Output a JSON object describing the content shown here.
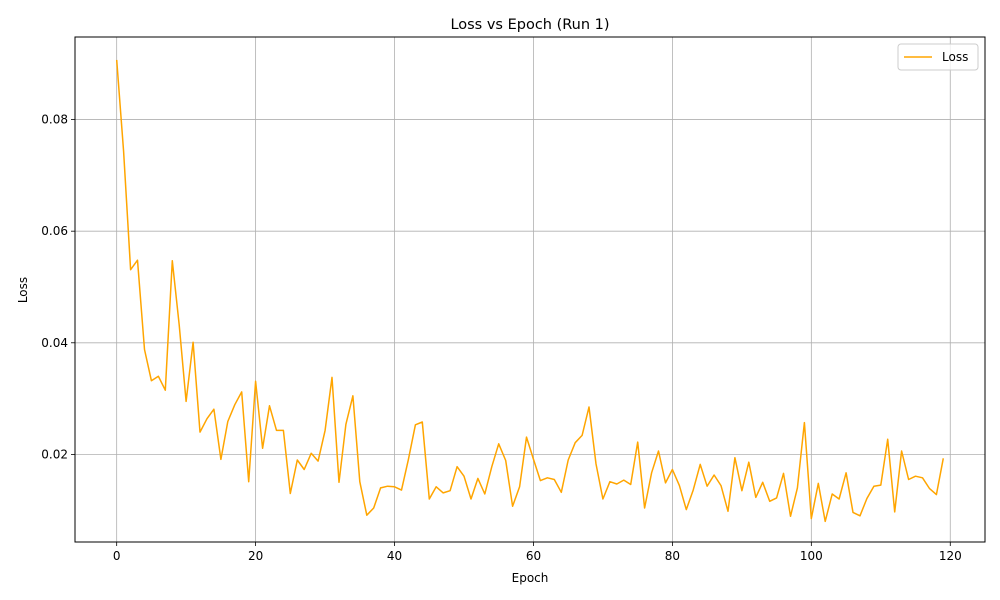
{
  "chart_data": {
    "type": "line",
    "title": "Loss vs Epoch (Run 1)",
    "xlabel": "Epoch",
    "ylabel": "Loss",
    "xlim": [
      -6,
      125
    ],
    "ylim": [
      0.0043,
      0.0948
    ],
    "xticks": [
      0,
      20,
      40,
      60,
      80,
      100,
      120
    ],
    "yticks": [
      0.02,
      0.04,
      0.06,
      0.08
    ],
    "ytick_labels": [
      "0.02",
      "0.04",
      "0.06",
      "0.08"
    ],
    "grid": true,
    "legend_position": "top-right",
    "series": [
      {
        "name": "Loss",
        "color": "#ffa500",
        "x": [
          0,
          1,
          2,
          3,
          4,
          5,
          6,
          7,
          8,
          9,
          10,
          11,
          12,
          13,
          14,
          15,
          16,
          17,
          18,
          19,
          20,
          21,
          22,
          23,
          24,
          25,
          26,
          27,
          28,
          29,
          30,
          31,
          32,
          33,
          34,
          35,
          36,
          37,
          38,
          39,
          40,
          41,
          42,
          43,
          44,
          45,
          46,
          47,
          48,
          49,
          50,
          51,
          52,
          53,
          54,
          55,
          56,
          57,
          58,
          59,
          60,
          61,
          62,
          63,
          64,
          65,
          66,
          67,
          68,
          69,
          70,
          71,
          72,
          73,
          74,
          75,
          76,
          77,
          78,
          79,
          80,
          81,
          82,
          83,
          84,
          85,
          86,
          87,
          88,
          89,
          90,
          91,
          92,
          93,
          94,
          95,
          96,
          97,
          98,
          99,
          100,
          101,
          102,
          103,
          104,
          105,
          106,
          107,
          108,
          109,
          110,
          111,
          112,
          113,
          114,
          115,
          116,
          117,
          118,
          119
        ],
        "values": [
          0.0907,
          0.0743,
          0.0531,
          0.0548,
          0.0388,
          0.0332,
          0.034,
          0.0315,
          0.0547,
          0.0432,
          0.0295,
          0.0401,
          0.024,
          0.0264,
          0.0281,
          0.0191,
          0.0259,
          0.0289,
          0.0312,
          0.0151,
          0.0331,
          0.0211,
          0.0287,
          0.0243,
          0.0243,
          0.013,
          0.019,
          0.0173,
          0.0202,
          0.0188,
          0.0243,
          0.0338,
          0.015,
          0.0254,
          0.0305,
          0.0151,
          0.0091,
          0.0104,
          0.014,
          0.0143,
          0.0142,
          0.0136,
          0.0191,
          0.0253,
          0.0258,
          0.012,
          0.0142,
          0.0131,
          0.0135,
          0.0178,
          0.0161,
          0.012,
          0.0157,
          0.0129,
          0.0178,
          0.0219,
          0.0189,
          0.0107,
          0.0142,
          0.0231,
          0.0191,
          0.0153,
          0.0158,
          0.0155,
          0.0132,
          0.019,
          0.0221,
          0.0234,
          0.0285,
          0.0183,
          0.012,
          0.0151,
          0.0147,
          0.0154,
          0.0146,
          0.0222,
          0.0104,
          0.0167,
          0.0206,
          0.0149,
          0.0173,
          0.0144,
          0.0101,
          0.0136,
          0.0182,
          0.0143,
          0.0163,
          0.0144,
          0.0098,
          0.0194,
          0.0135,
          0.0186,
          0.0123,
          0.015,
          0.0116,
          0.0122,
          0.0166,
          0.0089,
          0.014,
          0.0257,
          0.0085,
          0.0148,
          0.008,
          0.0129,
          0.012,
          0.0167,
          0.0096,
          0.009,
          0.0121,
          0.0143,
          0.0145,
          0.0227,
          0.0097,
          0.0206,
          0.0155,
          0.0161,
          0.0158,
          0.0139,
          0.0128,
          0.0193
        ]
      }
    ]
  }
}
